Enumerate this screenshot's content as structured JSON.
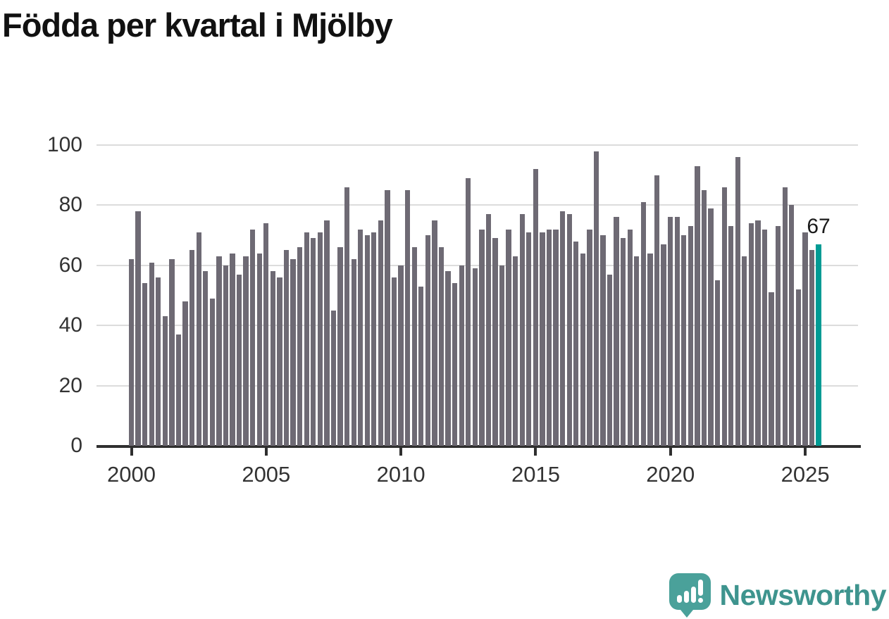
{
  "title": "Födda per kvartal i Mjölby",
  "annotation": {
    "label": "67"
  },
  "chart_data": {
    "type": "bar",
    "title": "Födda per kvartal i Mjölby",
    "x_start": "2000-Q1",
    "x_end": "2025-Q3",
    "xlabel": "",
    "ylabel": "",
    "ylim": [
      0,
      100
    ],
    "grid": true,
    "y_tick_labels": [
      "0",
      "20",
      "40",
      "60",
      "80",
      "100"
    ],
    "x_tick_labels": [
      "2000",
      "2005",
      "2010",
      "2015",
      "2020",
      "2025"
    ],
    "series": [
      {
        "name": "Födda per kvartal",
        "values": [
          62,
          78,
          54,
          61,
          56,
          43,
          62,
          37,
          48,
          65,
          71,
          58,
          49,
          63,
          60,
          64,
          57,
          63,
          72,
          64,
          74,
          58,
          56,
          65,
          62,
          66,
          71,
          69,
          71,
          75,
          45,
          66,
          86,
          62,
          72,
          70,
          71,
          75,
          85,
          56,
          60,
          85,
          66,
          53,
          70,
          75,
          66,
          58,
          54,
          60,
          89,
          59,
          72,
          77,
          69,
          60,
          72,
          63,
          77,
          71,
          92,
          71,
          72,
          72,
          78,
          77,
          68,
          64,
          72,
          98,
          70,
          57,
          76,
          69,
          72,
          63,
          81,
          64,
          90,
          67,
          76,
          76,
          70,
          73,
          93,
          85,
          79,
          55,
          86,
          73,
          96,
          63,
          74,
          75,
          72,
          51,
          73,
          86,
          80,
          52,
          71,
          65,
          67
        ]
      }
    ],
    "highlight": {
      "index": 102,
      "quarter": "2025-Q3",
      "value": 67,
      "label": "67"
    },
    "colors": {
      "bar": "#6e6a74",
      "highlight": "#009b94",
      "grid": "#dcdcdc",
      "axis": "#2f2f2f",
      "tick_label": "#333333",
      "title": "#111111",
      "annotation": "#1a1a1a"
    },
    "legend": "none"
  },
  "logo": {
    "text": "Newsworthy",
    "text_color": "#3e948e",
    "icon_color": "#4aa19a",
    "icon": "newsworthy-logo-icon"
  }
}
